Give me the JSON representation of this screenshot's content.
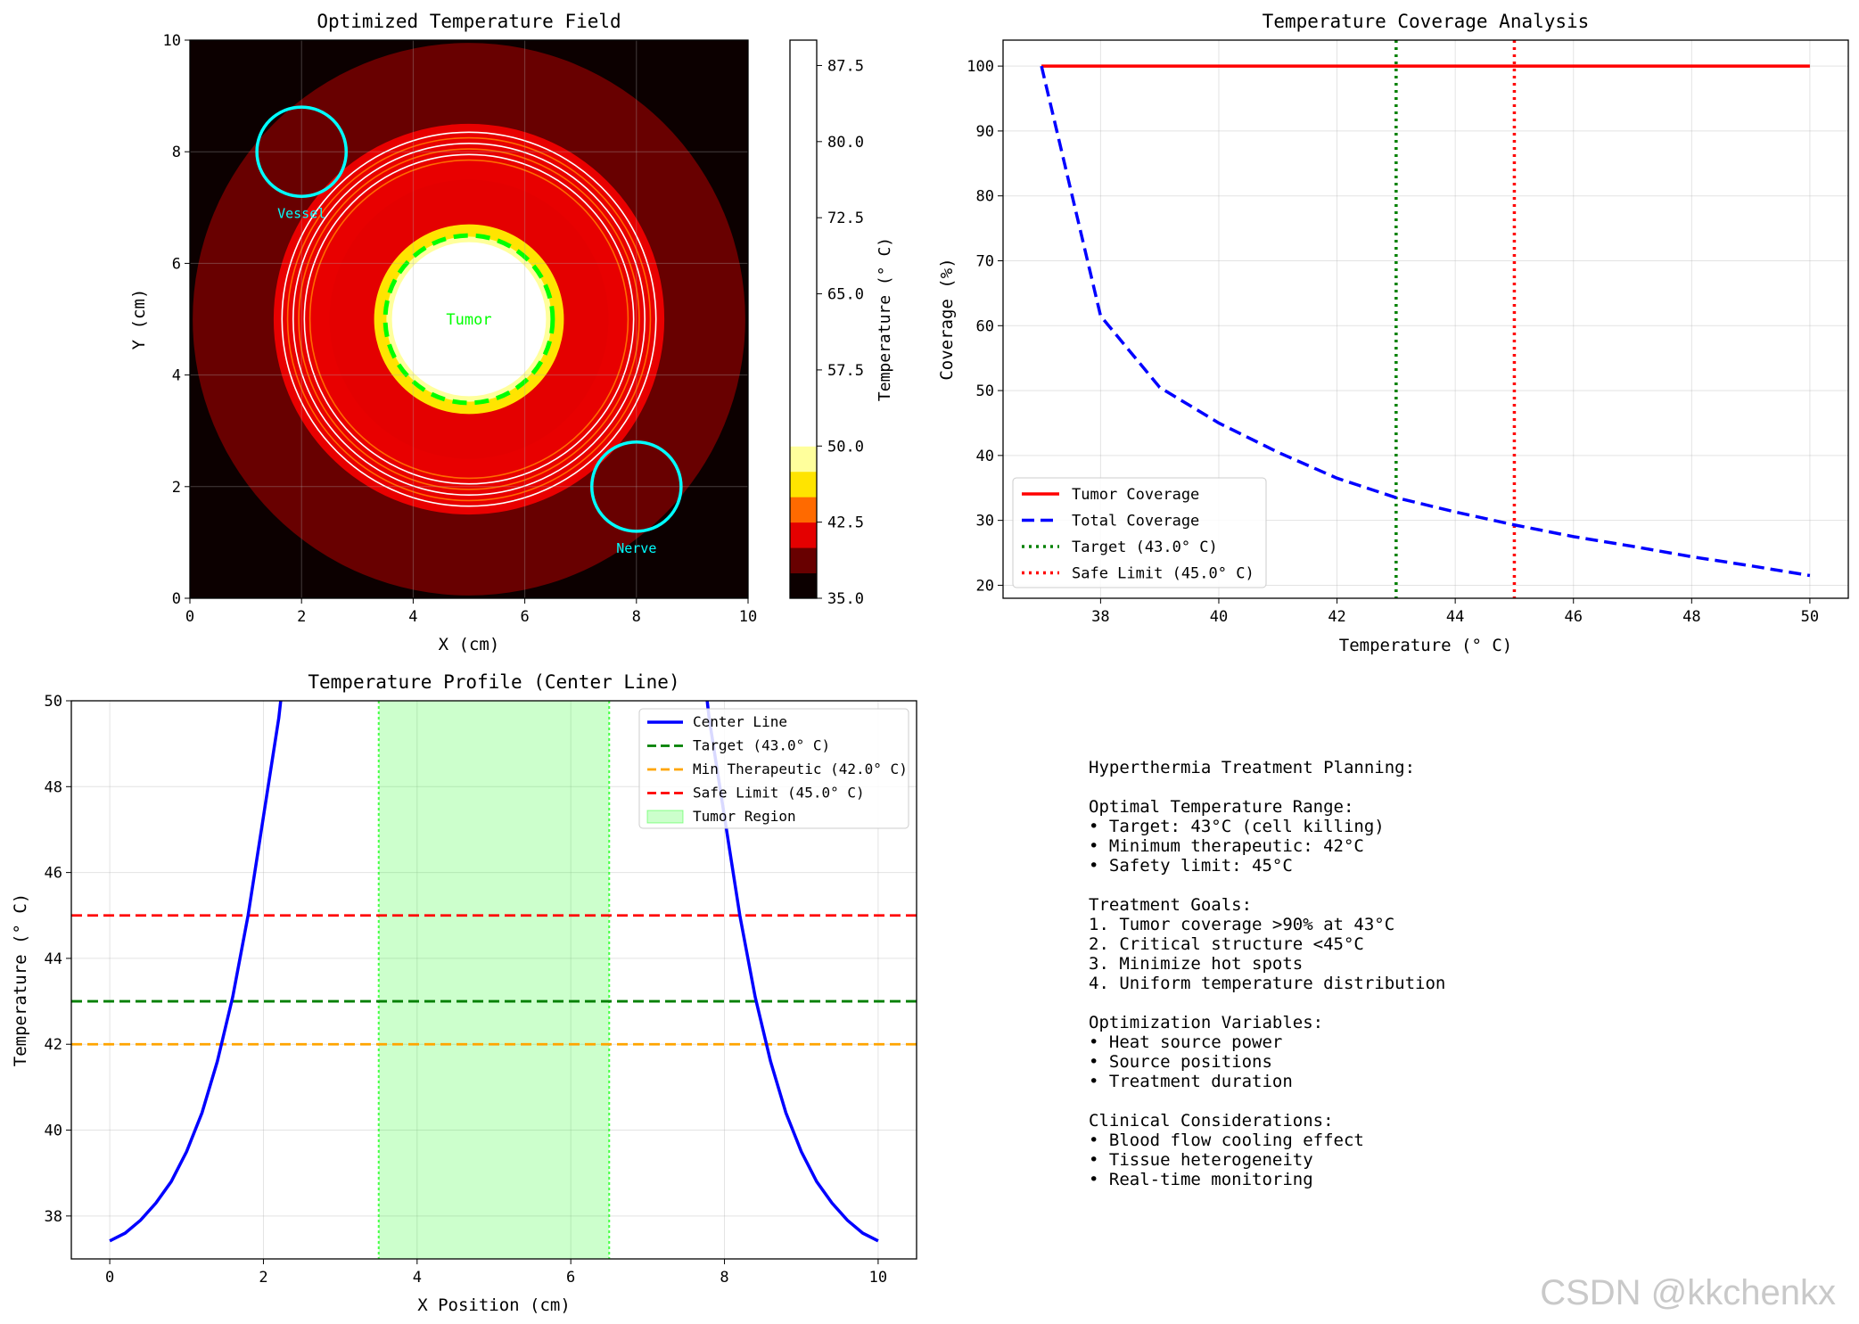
{
  "chart_data": [
    {
      "type": "heatmap",
      "title": "Optimized Temperature Field",
      "xlabel": "X (cm)",
      "ylabel": "Y (cm)",
      "xlim": [
        0,
        10
      ],
      "ylim": [
        0,
        10
      ],
      "xticks": [
        "0",
        "2",
        "4",
        "6",
        "8",
        "10"
      ],
      "yticks": [
        "0",
        "2",
        "4",
        "6",
        "8",
        "10"
      ],
      "center": [
        5,
        5
      ],
      "bands": [
        {
          "r_max": 1.38,
          "color": "#ffffff"
        },
        {
          "r_max": 1.48,
          "color": "#ffff9c"
        },
        {
          "r_max": 1.7,
          "color": "#ffe400"
        },
        {
          "r_max": 2.5,
          "color": "#e40000"
        },
        {
          "r_max": 3.5,
          "color": "#e80000"
        },
        {
          "r_max": 4.95,
          "color": "#680000"
        }
      ],
      "background": "#0c0000",
      "contours": [
        {
          "r": 3.35,
          "color": "#ffffff"
        },
        {
          "r": 3.25,
          "color": "#ff6a00"
        },
        {
          "r": 3.15,
          "color": "#ffffff"
        },
        {
          "r": 3.05,
          "color": "#ff6a00"
        },
        {
          "r": 2.95,
          "color": "#ffffff"
        },
        {
          "r": 2.85,
          "color": "#ff6a00"
        }
      ],
      "tumor": {
        "label": "Tumor",
        "x": 5,
        "y": 5,
        "r": 1.5,
        "color": "#00ff00"
      },
      "structures": [
        {
          "label": "Vessel",
          "x": 2,
          "y": 8,
          "r": 0.8,
          "color": "#00ffff"
        },
        {
          "label": "Nerve",
          "x": 8,
          "y": 2,
          "r": 0.8,
          "color": "#00ffff"
        }
      ],
      "colorbar": {
        "label": "Temperature (° C)",
        "ticks": [
          "35.0",
          "42.5",
          "50.0",
          "57.5",
          "65.0",
          "72.5",
          "80.0",
          "87.5"
        ],
        "range": [
          35,
          90
        ],
        "segments": [
          {
            "from": 35,
            "to": 37.5,
            "color": "#0c0000"
          },
          {
            "from": 37.5,
            "to": 40,
            "color": "#680000"
          },
          {
            "from": 40,
            "to": 42.5,
            "color": "#e40000"
          },
          {
            "from": 42.5,
            "to": 45,
            "color": "#ff6a00"
          },
          {
            "from": 45,
            "to": 47.5,
            "color": "#ffe400"
          },
          {
            "from": 47.5,
            "to": 50,
            "color": "#ffff9c"
          },
          {
            "from": 50,
            "to": 90,
            "color": "#ffffff"
          }
        ]
      }
    },
    {
      "type": "line",
      "title": "Temperature Coverage Analysis",
      "xlabel": "Temperature (° C)",
      "ylabel": "Coverage (%)",
      "xlim": [
        36.35,
        50.65
      ],
      "ylim": [
        18,
        104
      ],
      "xticks": [
        "38",
        "40",
        "42",
        "44",
        "46",
        "48",
        "50"
      ],
      "yticks": [
        "20",
        "30",
        "40",
        "50",
        "60",
        "70",
        "80",
        "90",
        "100"
      ],
      "x": [
        37,
        38,
        39,
        40,
        41,
        42,
        43,
        44,
        45,
        46,
        47,
        48,
        49,
        50
      ],
      "series": [
        {
          "name": "Tumor Coverage",
          "color": "#ff0000",
          "dash": "solid",
          "values": [
            100,
            100,
            100,
            100,
            100,
            100,
            100,
            100,
            100,
            100,
            100,
            100,
            100,
            100
          ]
        },
        {
          "name": "Total Coverage",
          "color": "#0000ff",
          "dash": "dashed",
          "values": [
            100,
            61.5,
            50.5,
            45,
            40.5,
            36.5,
            33.5,
            31.3,
            29.3,
            27.5,
            26,
            24.4,
            23,
            21.5
          ]
        }
      ],
      "vlines": [
        {
          "name": "Target (43.0° C)",
          "x": 43,
          "color": "#008000",
          "dash": "dotted"
        },
        {
          "name": "Safe Limit (45.0° C)",
          "x": 45,
          "color": "#ff0000",
          "dash": "dotted"
        }
      ],
      "legend_position": "lower-left"
    },
    {
      "type": "line",
      "title": "Temperature Profile (Center Line)",
      "xlabel": "X Position (cm)",
      "ylabel": "Temperature (° C)",
      "xlim": [
        -0.5,
        10.5
      ],
      "ylim": [
        37,
        50
      ],
      "xticks": [
        "0",
        "2",
        "4",
        "6",
        "8",
        "10"
      ],
      "yticks": [
        "38",
        "40",
        "42",
        "44",
        "46",
        "48",
        "50"
      ],
      "series": [
        {
          "name": "Center Line",
          "color": "#0000ff",
          "x": [
            0,
            0.2,
            0.4,
            0.6,
            0.8,
            1.0,
            1.2,
            1.4,
            1.6,
            1.8,
            2.0,
            2.2,
            2.3
          ],
          "y": [
            37.42,
            37.6,
            37.9,
            38.3,
            38.8,
            39.5,
            40.4,
            41.6,
            43.1,
            45.0,
            47.3,
            49.6,
            51.2
          ],
          "mirror_about": 5
        }
      ],
      "hlines": [
        {
          "name": "Target (43.0° C)",
          "y": 43,
          "color": "#008000",
          "dash": "dashed"
        },
        {
          "name": "Min Therapeutic (42.0° C)",
          "y": 42,
          "color": "#ffa500",
          "dash": "dashed"
        },
        {
          "name": "Safe Limit (45.0° C)",
          "y": 45,
          "color": "#ff0000",
          "dash": "dashed"
        }
      ],
      "span": {
        "name": "Tumor Region",
        "from": 3.5,
        "to": 6.5,
        "color": "#00ff00"
      },
      "legend_position": "upper-right"
    }
  ],
  "info_panel": {
    "lines": [
      "Hyperthermia Treatment Planning:",
      "",
      "Optimal Temperature Range:",
      "• Target: 43°C (cell killing)",
      "• Minimum therapeutic: 42°C",
      "• Safety limit: 45°C",
      "",
      "Treatment Goals:",
      "1. Tumor coverage >90% at 43°C",
      "2. Critical structure <45°C",
      "3. Minimize hot spots",
      "4. Uniform temperature distribution",
      "",
      "Optimization Variables:",
      "• Heat source power",
      "• Source positions",
      "• Treatment duration",
      "",
      "Clinical Considerations:",
      "• Blood flow cooling effect",
      "• Tissue heterogeneity",
      "• Real-time monitoring"
    ]
  },
  "watermark": "CSDN @kkchenkx"
}
